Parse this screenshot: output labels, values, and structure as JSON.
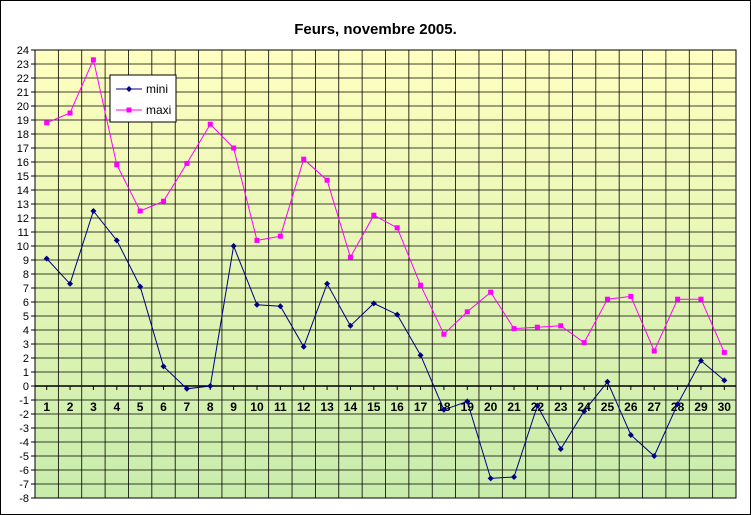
{
  "chart_data": {
    "type": "line",
    "title": "Feurs, novembre 2005.",
    "categories": [
      "1",
      "2",
      "3",
      "4",
      "5",
      "6",
      "7",
      "8",
      "9",
      "10",
      "11",
      "12",
      "13",
      "14",
      "15",
      "16",
      "17",
      "18",
      "19",
      "20",
      "21",
      "22",
      "23",
      "24",
      "25",
      "26",
      "27",
      "28",
      "29",
      "30"
    ],
    "series": [
      {
        "name": "mini",
        "color": "#000080",
        "marker": "diamond",
        "values": [
          9.1,
          7.3,
          12.5,
          10.4,
          7.1,
          1.4,
          -0.2,
          0,
          10,
          5.8,
          5.7,
          2.8,
          7.3,
          4.3,
          5.9,
          5.1,
          2.2,
          -1.7,
          -1.1,
          -6.6,
          -6.5,
          -1.4,
          -4.5,
          -1.8,
          0.3,
          -3.5,
          -5.0,
          -1.3,
          1.8,
          0.4
        ]
      },
      {
        "name": "maxi",
        "color": "#ff00ff",
        "marker": "square",
        "values": [
          18.8,
          19.5,
          23.3,
          15.8,
          12.5,
          13.2,
          15.9,
          18.7,
          17.0,
          10.4,
          10.7,
          16.2,
          14.7,
          9.2,
          12.2,
          11.3,
          7.2,
          3.7,
          5.3,
          6.7,
          4.1,
          4.2,
          4.3,
          3.1,
          6.2,
          6.4,
          2.5,
          6.2,
          6.2,
          2.4
        ]
      }
    ],
    "y_ticks": [
      "-8",
      "-7",
      "-6",
      "-5",
      "-4",
      "-3",
      "-2",
      "-1",
      "0",
      "1",
      "2",
      "3",
      "4",
      "5",
      "6",
      "7",
      "8",
      "9",
      "10",
      "11",
      "12",
      "13",
      "14",
      "15",
      "16",
      "17",
      "18",
      "19",
      "20",
      "21",
      "22",
      "23",
      "24"
    ],
    "ylim": [
      -8,
      24
    ],
    "grid": true,
    "legend_position": "top-left",
    "background_gradient": [
      "#ffffc0",
      "#c8ecac"
    ]
  }
}
